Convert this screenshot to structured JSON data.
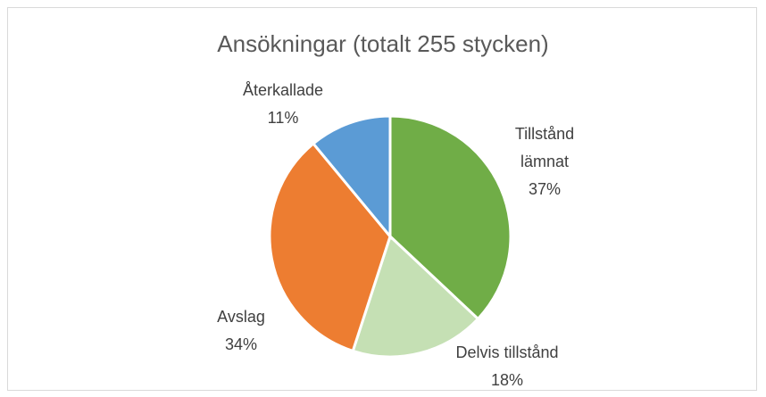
{
  "chart_data": {
    "type": "pie",
    "title": "Ansökningar (totalt 255 stycken)",
    "categories": [
      "Tillstånd lämnat",
      "Delvis tillstånd",
      "Avslag",
      "Återkallade"
    ],
    "values": [
      37,
      18,
      34,
      11
    ],
    "value_labels": [
      "37%",
      "18%",
      "34%",
      "11%"
    ],
    "colors": [
      "#70ad47",
      "#c5e0b4",
      "#ed7d31",
      "#5b9bd5"
    ]
  }
}
